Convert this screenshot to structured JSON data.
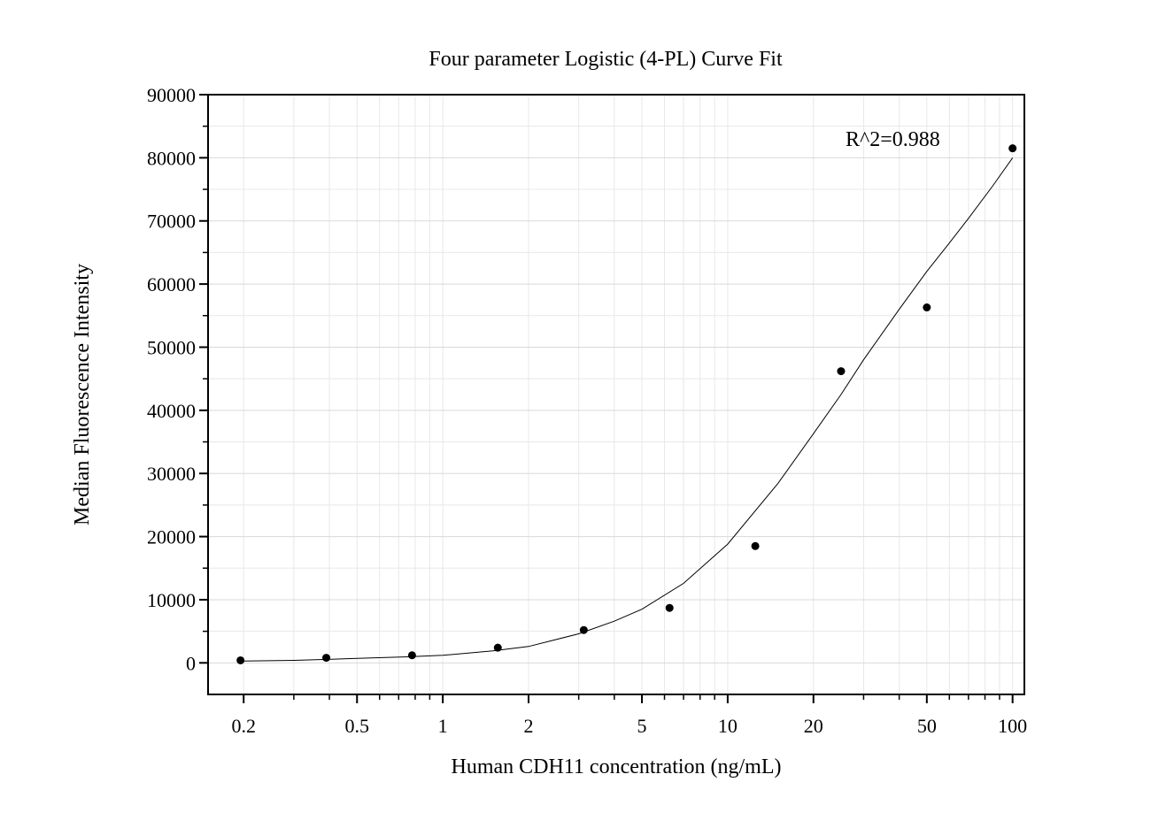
{
  "chart_data": {
    "type": "scatter",
    "title": "Four parameter Logistic (4-PL) Curve Fit",
    "xlabel": "Human CDH11 concentration (ng/mL)",
    "ylabel": "Median Fluorescence Intensity",
    "x_scale": "log",
    "xlim": [
      0.15,
      110
    ],
    "ylim": [
      -5000,
      90000
    ],
    "x_ticks": [
      0.2,
      0.5,
      1,
      2,
      5,
      10,
      20,
      50,
      100
    ],
    "x_tick_labels": [
      "0.2",
      "0.5",
      "1",
      "2",
      "5",
      "10",
      "20",
      "50",
      "100"
    ],
    "y_ticks": [
      0,
      10000,
      20000,
      30000,
      40000,
      50000,
      60000,
      70000,
      80000,
      90000
    ],
    "y_tick_labels": [
      "0",
      "10000",
      "20000",
      "30000",
      "40000",
      "50000",
      "60000",
      "70000",
      "80000",
      "90000"
    ],
    "grid": true,
    "annotation": "R^2=0.988",
    "series": [
      {
        "x": [
          0.195,
          0.39,
          0.78,
          1.56,
          3.125,
          6.25,
          12.5,
          25,
          50,
          100
        ],
        "y": [
          400,
          800,
          1200,
          2400,
          5200,
          8700,
          18500,
          46200,
          56300,
          81500
        ],
        "color": "#000000"
      }
    ],
    "fit_curve": {
      "model": "4PL",
      "x": [
        0.2,
        0.3,
        0.5,
        0.75,
        1,
        1.5,
        2,
        3,
        4,
        5,
        7,
        10,
        15,
        20,
        25,
        30,
        40,
        50,
        60,
        70,
        85,
        100
      ],
      "y": [
        300,
        400,
        700,
        950,
        1200,
        1900,
        2600,
        4600,
        6600,
        8500,
        12600,
        18800,
        28400,
        36300,
        42500,
        48000,
        56000,
        62000,
        66500,
        70400,
        75500,
        80000
      ],
      "color": "#000000"
    }
  }
}
